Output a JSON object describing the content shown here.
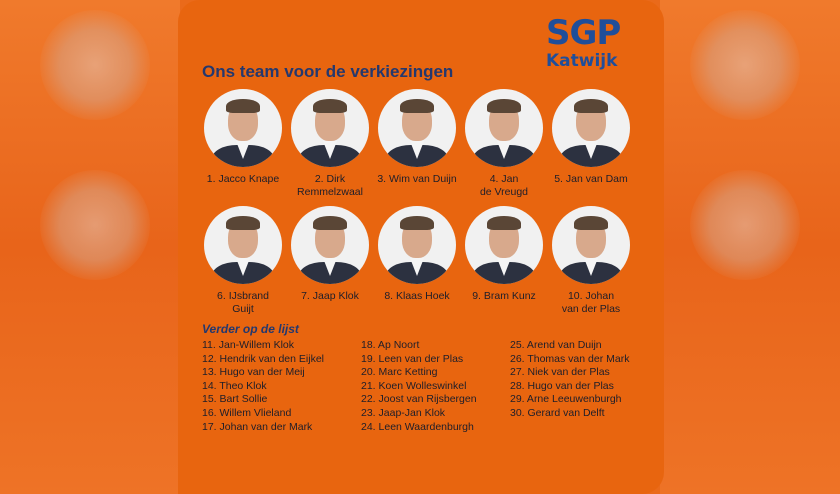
{
  "logo": {
    "party": "SGP",
    "city": "Katwijk"
  },
  "title": "Ons team voor de verkiezingen",
  "members": [
    {
      "num": "1.",
      "name": "Jacco Knape",
      "line2": ""
    },
    {
      "num": "2.",
      "name": "Dirk",
      "line2": "Remmelzwaal"
    },
    {
      "num": "3.",
      "name": "Wim van Duijn",
      "line2": ""
    },
    {
      "num": "4.",
      "name": "Jan",
      "line2": "de Vreugd"
    },
    {
      "num": "5.",
      "name": "Jan van Dam",
      "line2": ""
    },
    {
      "num": "6.",
      "name": "IJsbrand",
      "line2": "Guijt"
    },
    {
      "num": "7.",
      "name": "Jaap Klok",
      "line2": ""
    },
    {
      "num": "8.",
      "name": "Klaas Hoek",
      "line2": ""
    },
    {
      "num": "9.",
      "name": "Bram Kunz",
      "line2": ""
    },
    {
      "num": "10.",
      "name": "Johan",
      "line2": "van der Plas"
    }
  ],
  "subtitle": "Verder op de lijst",
  "list_col1": [
    "11. Jan-Willem Klok",
    "12. Hendrik van den Eijkel",
    "13. Hugo van der Meij",
    "14. Theo Klok",
    "15. Bart Sollie",
    "16. Willem Vlieland",
    "17. Johan van der Mark"
  ],
  "list_col2": [
    "18. Ap Noort",
    "19. Leen van der Plas",
    "20. Marc Ketting",
    "21. Koen Wolleswinkel",
    "22. Joost van Rijsbergen",
    "23. Jaap-Jan Klok",
    "24. Leen Waardenburgh"
  ],
  "list_col3": [
    "25. Arend van Duijn",
    "26. Thomas van der Mark",
    "27. Niek van der Plas",
    "28. Hugo van der Plas",
    "29. Arne Leeuwenburgh",
    "30. Gerard van Delft"
  ],
  "colors": {
    "card": "#e8650f",
    "logo": "#1f4e9a",
    "heading": "#24386e"
  }
}
